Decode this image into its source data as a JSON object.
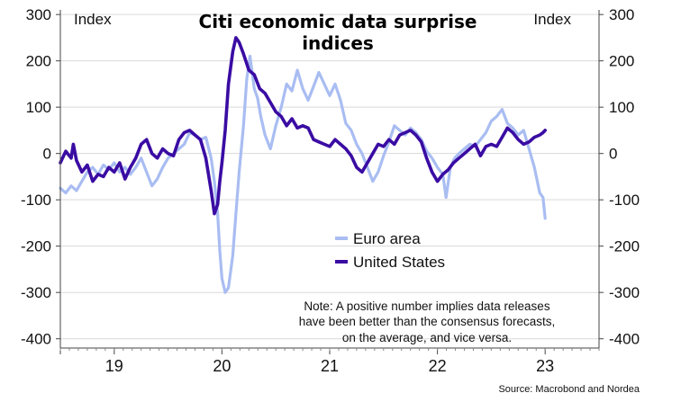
{
  "chart_data": {
    "type": "line",
    "title": "Citi economic data surprise indices",
    "title_lines": [
      "Citi economic data surprise",
      "indices"
    ],
    "ylabel_left": "Index",
    "ylabel_right": "Index",
    "ylim": [
      -420,
      310
    ],
    "yticks": [
      -400,
      -300,
      -200,
      -100,
      0,
      100,
      200,
      300
    ],
    "ytick_labels": [
      "-400",
      "-300",
      "-200",
      "-100",
      "0",
      "100",
      "200",
      "300"
    ],
    "xlim": [
      2018.5,
      2023.5
    ],
    "year_boundaries": [
      2019,
      2020,
      2021,
      2022,
      2023
    ],
    "xtick_labels": [
      {
        "label": "19",
        "x": 2019.0
      },
      {
        "label": "20",
        "x": 2020.0
      },
      {
        "label": "21",
        "x": 2021.0
      },
      {
        "label": "22",
        "x": 2022.0
      },
      {
        "label": "23",
        "x": 2023.0
      }
    ],
    "grid": true,
    "legend_position": "center",
    "series": [
      {
        "name": "Euro area",
        "color": "#a9bdf2",
        "points": [
          [
            2018.5,
            -75
          ],
          [
            2018.55,
            -85
          ],
          [
            2018.6,
            -70
          ],
          [
            2018.65,
            -80
          ],
          [
            2018.7,
            -60
          ],
          [
            2018.75,
            -40
          ],
          [
            2018.8,
            -30
          ],
          [
            2018.85,
            -45
          ],
          [
            2018.9,
            -25
          ],
          [
            2018.95,
            -35
          ],
          [
            2019.0,
            -20
          ],
          [
            2019.05,
            -40
          ],
          [
            2019.1,
            -30
          ],
          [
            2019.15,
            -45
          ],
          [
            2019.2,
            -30
          ],
          [
            2019.25,
            -10
          ],
          [
            2019.3,
            -40
          ],
          [
            2019.35,
            -70
          ],
          [
            2019.4,
            -55
          ],
          [
            2019.45,
            -30
          ],
          [
            2019.5,
            -10
          ],
          [
            2019.55,
            0
          ],
          [
            2019.6,
            10
          ],
          [
            2019.65,
            20
          ],
          [
            2019.7,
            45
          ],
          [
            2019.75,
            40
          ],
          [
            2019.8,
            30
          ],
          [
            2019.85,
            35
          ],
          [
            2019.9,
            -10
          ],
          [
            2019.93,
            -60
          ],
          [
            2019.96,
            -130
          ],
          [
            2019.98,
            -210
          ],
          [
            2020.0,
            -270
          ],
          [
            2020.03,
            -300
          ],
          [
            2020.06,
            -290
          ],
          [
            2020.1,
            -220
          ],
          [
            2020.13,
            -130
          ],
          [
            2020.16,
            -40
          ],
          [
            2020.2,
            60
          ],
          [
            2020.23,
            160
          ],
          [
            2020.26,
            210
          ],
          [
            2020.3,
            140
          ],
          [
            2020.33,
            120
          ],
          [
            2020.36,
            80
          ],
          [
            2020.4,
            40
          ],
          [
            2020.45,
            10
          ],
          [
            2020.5,
            60
          ],
          [
            2020.55,
            100
          ],
          [
            2020.6,
            150
          ],
          [
            2020.65,
            135
          ],
          [
            2020.7,
            180
          ],
          [
            2020.75,
            140
          ],
          [
            2020.8,
            115
          ],
          [
            2020.85,
            145
          ],
          [
            2020.9,
            175
          ],
          [
            2020.95,
            150
          ],
          [
            2021.0,
            125
          ],
          [
            2021.05,
            150
          ],
          [
            2021.1,
            115
          ],
          [
            2021.15,
            65
          ],
          [
            2021.2,
            50
          ],
          [
            2021.25,
            20
          ],
          [
            2021.3,
            0
          ],
          [
            2021.35,
            -30
          ],
          [
            2021.4,
            -60
          ],
          [
            2021.45,
            -40
          ],
          [
            2021.5,
            -5
          ],
          [
            2021.55,
            25
          ],
          [
            2021.6,
            60
          ],
          [
            2021.65,
            50
          ],
          [
            2021.7,
            40
          ],
          [
            2021.75,
            55
          ],
          [
            2021.8,
            45
          ],
          [
            2021.85,
            30
          ],
          [
            2021.9,
            5
          ],
          [
            2021.95,
            -10
          ],
          [
            2022.0,
            -30
          ],
          [
            2022.05,
            -45
          ],
          [
            2022.08,
            -95
          ],
          [
            2022.12,
            -30
          ],
          [
            2022.16,
            -10
          ],
          [
            2022.2,
            0
          ],
          [
            2022.25,
            10
          ],
          [
            2022.3,
            20
          ],
          [
            2022.35,
            15
          ],
          [
            2022.4,
            30
          ],
          [
            2022.45,
            45
          ],
          [
            2022.5,
            70
          ],
          [
            2022.55,
            80
          ],
          [
            2022.6,
            95
          ],
          [
            2022.65,
            65
          ],
          [
            2022.7,
            55
          ],
          [
            2022.75,
            40
          ],
          [
            2022.8,
            50
          ],
          [
            2022.85,
            10
          ],
          [
            2022.9,
            -30
          ],
          [
            2022.95,
            -85
          ],
          [
            2022.98,
            -95
          ],
          [
            2023.0,
            -140
          ]
        ]
      },
      {
        "name": "United States",
        "color": "#3a0ca3",
        "points": [
          [
            2018.5,
            -20
          ],
          [
            2018.55,
            5
          ],
          [
            2018.6,
            -10
          ],
          [
            2018.62,
            20
          ],
          [
            2018.65,
            -15
          ],
          [
            2018.7,
            -40
          ],
          [
            2018.75,
            -25
          ],
          [
            2018.8,
            -60
          ],
          [
            2018.85,
            -45
          ],
          [
            2018.9,
            -50
          ],
          [
            2018.95,
            -30
          ],
          [
            2019.0,
            -40
          ],
          [
            2019.05,
            -20
          ],
          [
            2019.1,
            -55
          ],
          [
            2019.15,
            -30
          ],
          [
            2019.2,
            -10
          ],
          [
            2019.25,
            20
          ],
          [
            2019.3,
            30
          ],
          [
            2019.35,
            0
          ],
          [
            2019.4,
            -10
          ],
          [
            2019.45,
            10
          ],
          [
            2019.5,
            0
          ],
          [
            2019.55,
            -5
          ],
          [
            2019.6,
            30
          ],
          [
            2019.65,
            45
          ],
          [
            2019.7,
            50
          ],
          [
            2019.75,
            40
          ],
          [
            2019.8,
            30
          ],
          [
            2019.85,
            -10
          ],
          [
            2019.9,
            -80
          ],
          [
            2019.93,
            -130
          ],
          [
            2019.96,
            -110
          ],
          [
            2019.98,
            -60
          ],
          [
            2020.0,
            -20
          ],
          [
            2020.03,
            50
          ],
          [
            2020.06,
            150
          ],
          [
            2020.1,
            220
          ],
          [
            2020.13,
            250
          ],
          [
            2020.16,
            240
          ],
          [
            2020.2,
            215
          ],
          [
            2020.25,
            180
          ],
          [
            2020.3,
            170
          ],
          [
            2020.35,
            140
          ],
          [
            2020.4,
            130
          ],
          [
            2020.45,
            110
          ],
          [
            2020.5,
            90
          ],
          [
            2020.55,
            80
          ],
          [
            2020.6,
            60
          ],
          [
            2020.65,
            75
          ],
          [
            2020.7,
            55
          ],
          [
            2020.75,
            60
          ],
          [
            2020.8,
            55
          ],
          [
            2020.85,
            30
          ],
          [
            2020.9,
            25
          ],
          [
            2020.95,
            20
          ],
          [
            2021.0,
            15
          ],
          [
            2021.05,
            30
          ],
          [
            2021.1,
            20
          ],
          [
            2021.15,
            10
          ],
          [
            2021.2,
            -5
          ],
          [
            2021.25,
            -30
          ],
          [
            2021.3,
            -40
          ],
          [
            2021.35,
            -20
          ],
          [
            2021.4,
            0
          ],
          [
            2021.45,
            20
          ],
          [
            2021.5,
            15
          ],
          [
            2021.55,
            30
          ],
          [
            2021.6,
            20
          ],
          [
            2021.65,
            40
          ],
          [
            2021.7,
            45
          ],
          [
            2021.75,
            50
          ],
          [
            2021.8,
            40
          ],
          [
            2021.85,
            25
          ],
          [
            2021.9,
            -10
          ],
          [
            2021.95,
            -40
          ],
          [
            2022.0,
            -60
          ],
          [
            2022.05,
            -45
          ],
          [
            2022.1,
            -35
          ],
          [
            2022.15,
            -20
          ],
          [
            2022.2,
            -10
          ],
          [
            2022.25,
            0
          ],
          [
            2022.3,
            10
          ],
          [
            2022.35,
            20
          ],
          [
            2022.4,
            -5
          ],
          [
            2022.45,
            15
          ],
          [
            2022.5,
            20
          ],
          [
            2022.55,
            15
          ],
          [
            2022.6,
            35
          ],
          [
            2022.65,
            55
          ],
          [
            2022.7,
            45
          ],
          [
            2022.75,
            30
          ],
          [
            2022.8,
            20
          ],
          [
            2022.85,
            25
          ],
          [
            2022.9,
            35
          ],
          [
            2022.95,
            40
          ],
          [
            2022.98,
            45
          ],
          [
            2023.0,
            50
          ]
        ]
      }
    ],
    "legend": [
      {
        "label": "Euro area",
        "color": "#a9bdf2"
      },
      {
        "label": "United States",
        "color": "#3a0ca3"
      }
    ],
    "note_lines": [
      "Note: A positive number implies data releases",
      "have been better than the consensus forecasts,",
      "on the average, and vice versa."
    ],
    "source": "Source: Macrobond and Nordea"
  }
}
